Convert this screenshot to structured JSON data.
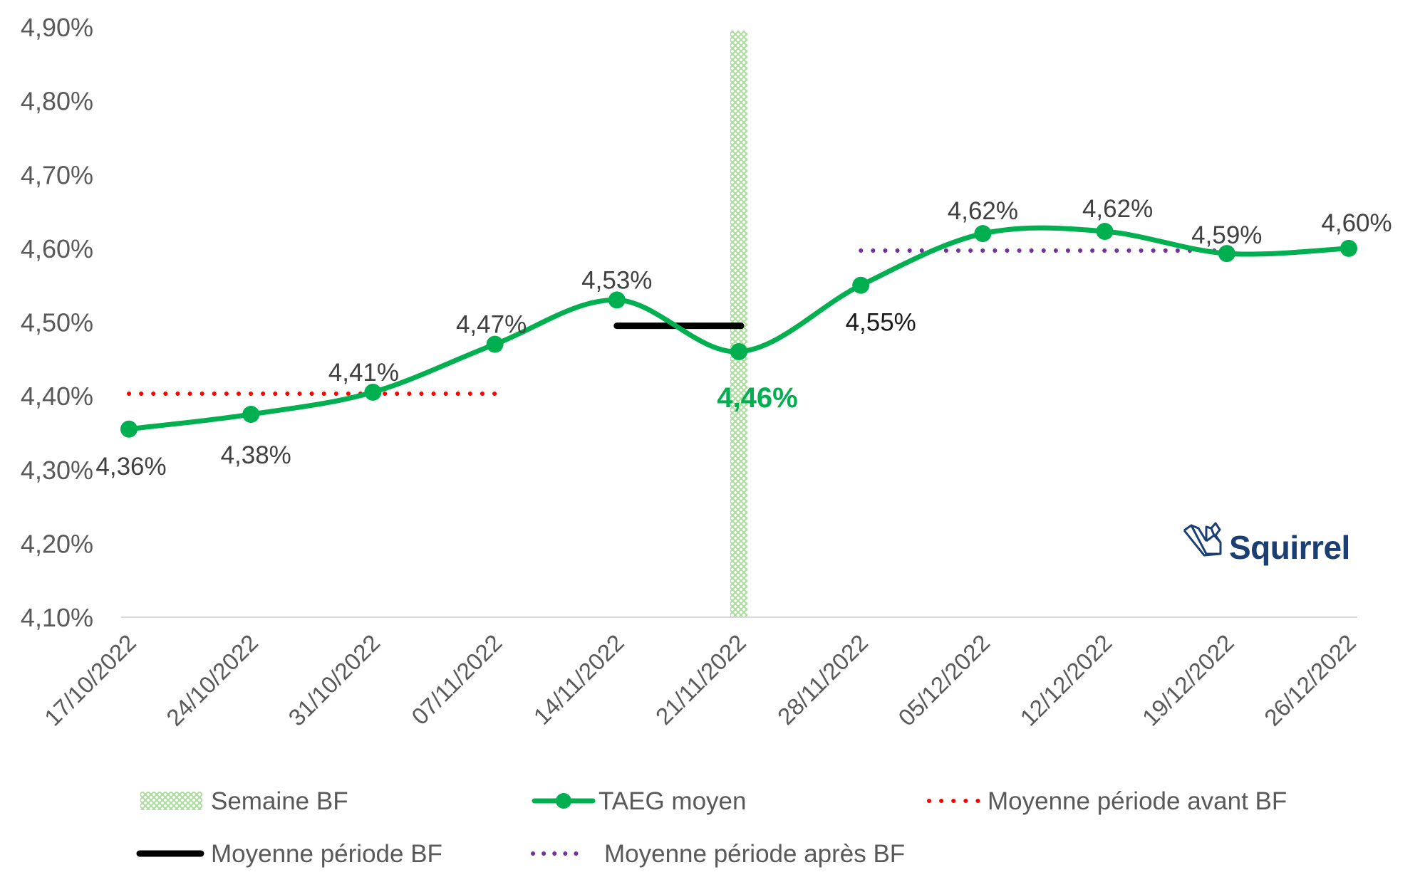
{
  "chart_data": {
    "type": "line",
    "title": "",
    "xlabel": "",
    "ylabel": "",
    "categories": [
      "17/10/2022",
      "24/10/2022",
      "31/10/2022",
      "07/11/2022",
      "14/11/2022",
      "21/11/2022",
      "28/11/2022",
      "05/12/2022",
      "12/12/2022",
      "19/12/2022",
      "26/12/2022"
    ],
    "ylim": [
      4.1,
      4.9
    ],
    "yticks": [
      4.1,
      4.2,
      4.3,
      4.4,
      4.5,
      4.6,
      4.7,
      4.8,
      4.9
    ],
    "ytick_labels": [
      "4,10%",
      "4,20%",
      "4,30%",
      "4,40%",
      "4,50%",
      "4,60%",
      "4,70%",
      "4,80%",
      "4,90%"
    ],
    "grid": false,
    "series": [
      {
        "name": "TAEG moyen",
        "color": "#00b050",
        "style": "smooth-line-markers",
        "values": [
          4.355,
          4.375,
          4.405,
          4.47,
          4.53,
          4.46,
          4.55,
          4.62,
          4.623,
          4.593,
          4.6
        ],
        "labels": [
          "4,36%",
          "4,38%",
          "4,41%",
          "4,47%",
          "4,53%",
          "4,46%",
          "4,55%",
          "4,62%",
          "4,62%",
          "4,59%",
          "4,60%"
        ]
      },
      {
        "name": "Moyenne période avant BF",
        "color": "#ff0000",
        "style": "dotted",
        "value": 4.403,
        "x_range": [
          "17/10/2022",
          "07/11/2022"
        ]
      },
      {
        "name": "Moyenne période BF",
        "color": "#000000",
        "style": "solid",
        "value": 4.495,
        "x_range": [
          "14/11/2022",
          "21/11/2022"
        ]
      },
      {
        "name": "Moyenne période après BF",
        "color": "#7030a0",
        "style": "dotted",
        "value": 4.597,
        "x_range": [
          "28/11/2022",
          "19/12/2022"
        ]
      },
      {
        "name": "Semaine BF",
        "color": "#b6e3a8",
        "style": "hatched-bar",
        "x": "21/11/2022"
      }
    ],
    "highlight_label_index": 5,
    "highlight_color": "#00b050",
    "legend_position": "bottom",
    "legend": [
      {
        "key": "semaine_bf",
        "label": "Semaine BF"
      },
      {
        "key": "taeg",
        "label": "TAEG moyen"
      },
      {
        "key": "avant",
        "label": "Moyenne période avant BF"
      },
      {
        "key": "bf",
        "label": "Moyenne période BF"
      },
      {
        "key": "apres",
        "label": "Moyenne période après BF"
      }
    ]
  },
  "logo": {
    "text": "Squirrel",
    "icon": "squirrel-logo-icon",
    "color": "#1b3f73"
  }
}
